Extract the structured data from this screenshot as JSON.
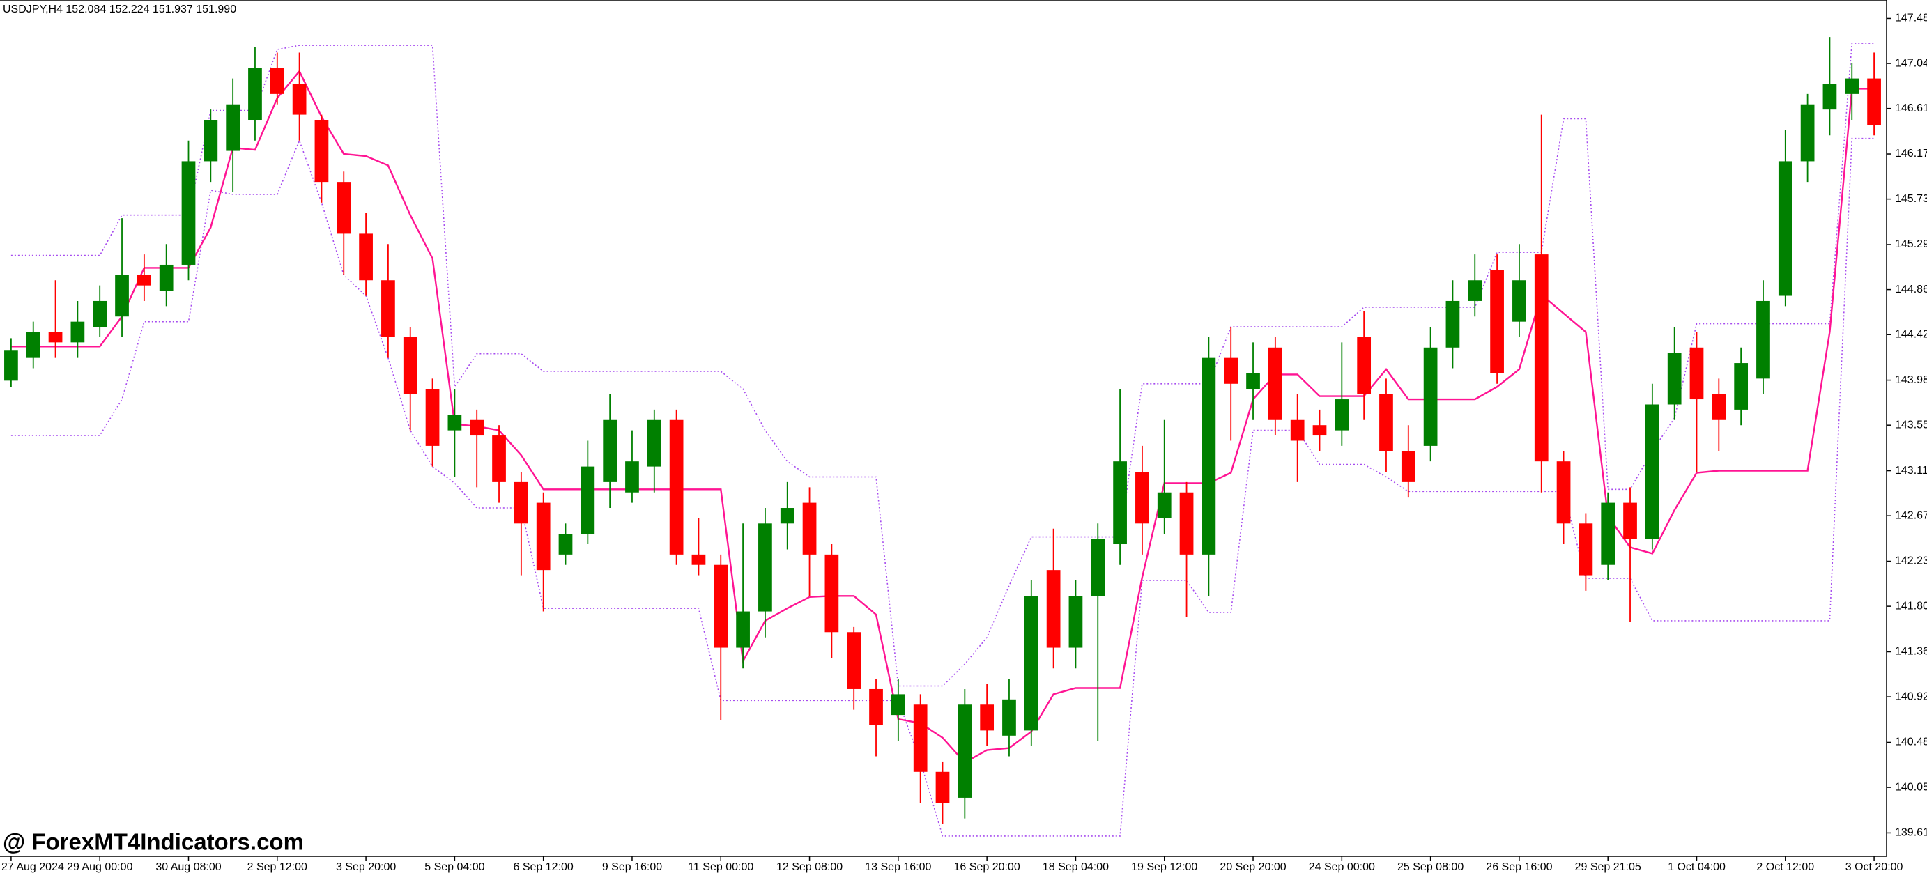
{
  "chart_data": {
    "type": "candlestick",
    "title": "USDJPY,H4  152.084 152.224 151.937 151.990",
    "watermark": "@ ForexMT4Indicators.com",
    "categories": [
      "27 Aug 2024",
      null,
      null,
      null,
      "29 Aug 00:00",
      null,
      null,
      null,
      "30 Aug 08:00",
      null,
      null,
      null,
      "2 Sep 12:00",
      null,
      null,
      null,
      "3 Sep 20:00",
      null,
      null,
      null,
      "5 Sep 04:00",
      null,
      null,
      null,
      "6 Sep 12:00",
      null,
      null,
      null,
      "9 Sep 16:00",
      null,
      null,
      null,
      "11 Sep 00:00",
      null,
      null,
      null,
      "12 Sep 08:00",
      null,
      null,
      null,
      "13 Sep 16:00",
      null,
      null,
      null,
      "16 Sep 20:00",
      null,
      null,
      null,
      "18 Sep 04:00",
      null,
      null,
      null,
      "19 Sep 12:00",
      null,
      null,
      null,
      "20 Sep 20:00",
      null,
      null,
      null,
      "24 Sep 00:00",
      null,
      null,
      null,
      "25 Sep 08:00",
      null,
      null,
      null,
      "26 Sep 16:00",
      null,
      null,
      null,
      "29 Sep 21:05",
      null,
      null,
      null,
      "1 Oct 04:00",
      null,
      null,
      null,
      "2 Oct 12:00",
      null,
      null,
      null,
      "3 Oct 20:00"
    ],
    "open": [
      143.98,
      144.2,
      144.45,
      144.35,
      144.5,
      144.6,
      145.0,
      144.85,
      145.1,
      146.1,
      146.2,
      146.5,
      147.0,
      146.85,
      146.5,
      145.9,
      145.4,
      144.95,
      144.4,
      143.9,
      143.5,
      143.6,
      143.45,
      143.0,
      142.8,
      142.3,
      142.5,
      143.0,
      142.9,
      143.15,
      143.6,
      142.3,
      142.2,
      141.4,
      141.75,
      142.6,
      142.8,
      142.3,
      141.55,
      141.0,
      140.75,
      140.85,
      140.2,
      139.95,
      140.85,
      140.55,
      140.6,
      142.15,
      141.4,
      141.9,
      142.4,
      143.1,
      142.65,
      142.9,
      142.3,
      144.2,
      143.9,
      144.3,
      143.6,
      143.55,
      143.5,
      144.4,
      143.85,
      143.3,
      143.35,
      144.3,
      144.75,
      145.05,
      144.55,
      145.2,
      143.2,
      142.6,
      142.2,
      142.8,
      142.45,
      143.75,
      144.3,
      143.85,
      143.7,
      144.0,
      144.8,
      146.1,
      146.6,
      146.75,
      146.9
    ],
    "high": [
      144.39,
      144.55,
      144.95,
      144.75,
      144.9,
      145.55,
      145.2,
      145.3,
      146.3,
      146.6,
      146.9,
      147.2,
      147.15,
      147.15,
      146.55,
      146.0,
      145.6,
      145.3,
      144.5,
      144.0,
      143.9,
      143.7,
      143.55,
      143.1,
      142.9,
      142.6,
      143.4,
      143.85,
      143.5,
      143.7,
      143.7,
      142.65,
      142.3,
      142.6,
      142.75,
      143.0,
      142.95,
      142.4,
      141.6,
      141.1,
      141.1,
      140.95,
      140.3,
      141.0,
      141.05,
      141.1,
      142.05,
      142.55,
      142.05,
      142.6,
      143.9,
      143.35,
      143.6,
      143.0,
      144.4,
      144.5,
      144.35,
      144.4,
      143.85,
      143.7,
      144.35,
      144.65,
      144.0,
      143.55,
      144.5,
      144.95,
      145.2,
      145.2,
      145.3,
      146.55,
      143.3,
      142.7,
      142.9,
      142.95,
      143.95,
      144.5,
      144.45,
      144.0,
      144.3,
      144.95,
      146.4,
      146.75,
      147.3,
      147.05,
      147.15
    ],
    "low": [
      143.92,
      144.1,
      144.2,
      144.2,
      144.4,
      144.4,
      144.75,
      144.7,
      144.95,
      145.9,
      145.8,
      146.3,
      146.65,
      146.3,
      145.7,
      145.0,
      144.8,
      144.2,
      143.5,
      143.15,
      143.05,
      142.95,
      142.8,
      142.1,
      141.75,
      142.2,
      142.4,
      142.75,
      142.8,
      142.9,
      142.2,
      142.1,
      140.7,
      141.2,
      141.5,
      142.35,
      141.9,
      141.3,
      140.8,
      140.35,
      140.5,
      139.9,
      139.7,
      139.75,
      140.45,
      140.35,
      140.45,
      141.2,
      141.2,
      140.5,
      142.2,
      142.3,
      142.5,
      141.7,
      141.9,
      143.4,
      143.6,
      143.45,
      143.0,
      143.3,
      143.35,
      143.6,
      143.1,
      142.85,
      143.2,
      144.1,
      144.6,
      143.95,
      144.4,
      142.9,
      142.4,
      141.95,
      142.05,
      141.65,
      142.35,
      143.6,
      143.1,
      143.3,
      143.55,
      143.85,
      144.7,
      145.9,
      146.35,
      146.5,
      146.35
    ],
    "close": [
      144.27,
      144.45,
      144.35,
      144.55,
      144.75,
      145.0,
      144.9,
      145.1,
      146.1,
      146.5,
      146.65,
      147.0,
      146.75,
      146.55,
      145.9,
      145.4,
      144.95,
      144.4,
      143.85,
      143.35,
      143.65,
      143.45,
      143.0,
      142.6,
      142.15,
      142.5,
      143.15,
      143.6,
      143.2,
      143.6,
      142.3,
      142.2,
      141.4,
      141.75,
      142.6,
      142.75,
      142.3,
      141.55,
      141.0,
      140.65,
      140.95,
      140.2,
      139.9,
      140.85,
      140.6,
      140.9,
      141.9,
      141.4,
      141.9,
      142.45,
      143.2,
      142.6,
      142.9,
      142.3,
      144.2,
      143.95,
      144.05,
      143.6,
      143.4,
      143.45,
      143.8,
      143.85,
      143.3,
      143.0,
      144.3,
      144.75,
      144.95,
      144.05,
      144.95,
      143.2,
      142.6,
      142.1,
      142.8,
      142.45,
      143.75,
      144.25,
      143.8,
      143.6,
      144.15,
      144.75,
      146.1,
      146.65,
      146.85,
      146.9,
      146.45
    ],
    "up_color": "#008000",
    "down_color": "#ff0000",
    "lines": [
      {
        "color": "#a64bef",
        "style": "dotted",
        "values": [
          145.19,
          145.19,
          145.19,
          145.19,
          145.19,
          145.58,
          145.58,
          145.58,
          145.58,
          146.59,
          146.59,
          146.59,
          147.18,
          147.22,
          147.22,
          147.22,
          147.22,
          147.22,
          147.22,
          147.22,
          143.92,
          144.24,
          144.24,
          144.24,
          144.07,
          144.07,
          144.07,
          144.07,
          144.07,
          144.07,
          144.07,
          144.07,
          144.07,
          143.9,
          143.5,
          143.2,
          143.05,
          143.05,
          143.05,
          143.05,
          141.03,
          141.03,
          141.03,
          141.24,
          141.5,
          142.0,
          142.47,
          142.47,
          142.47,
          142.47,
          142.47,
          143.95,
          143.95,
          143.95,
          143.95,
          144.5,
          144.5,
          144.5,
          144.5,
          144.5,
          144.5,
          144.69,
          144.69,
          144.69,
          144.69,
          144.69,
          144.69,
          145.22,
          145.22,
          145.22,
          146.51,
          146.51,
          142.93,
          142.93,
          143.3,
          143.62,
          144.53,
          144.53,
          144.53,
          144.53,
          144.53,
          144.53,
          144.53,
          147.24,
          147.24
        ]
      },
      {
        "color": "#a64bef",
        "style": "dotted",
        "values": [
          143.45,
          143.45,
          143.45,
          143.45,
          143.45,
          143.8,
          144.55,
          144.55,
          144.55,
          145.82,
          145.78,
          145.78,
          145.78,
          146.3,
          145.7,
          145.0,
          144.8,
          144.2,
          143.5,
          143.15,
          142.99,
          142.75,
          142.75,
          142.75,
          141.78,
          141.78,
          141.78,
          141.78,
          141.78,
          141.78,
          141.78,
          141.78,
          140.89,
          140.89,
          140.89,
          140.89,
          140.89,
          140.89,
          140.89,
          140.89,
          140.89,
          140.3,
          139.58,
          139.58,
          139.58,
          139.58,
          139.58,
          139.58,
          139.58,
          139.58,
          139.58,
          142.05,
          142.05,
          142.05,
          141.74,
          141.74,
          143.5,
          143.5,
          143.5,
          143.17,
          143.17,
          143.17,
          143.05,
          142.91,
          142.91,
          142.91,
          142.91,
          142.91,
          142.91,
          142.91,
          142.91,
          142.07,
          142.07,
          142.07,
          141.66,
          141.66,
          141.66,
          141.66,
          141.66,
          141.66,
          141.66,
          141.66,
          141.66,
          146.32,
          146.32
        ]
      },
      {
        "color": "#ff1493",
        "style": "solid",
        "values": [
          144.31,
          144.31,
          144.31,
          144.31,
          144.31,
          144.6,
          145.07,
          145.07,
          145.07,
          145.46,
          146.23,
          146.21,
          146.71,
          146.97,
          146.53,
          146.17,
          146.15,
          146.06,
          145.58,
          145.16,
          143.56,
          143.54,
          143.5,
          143.26,
          142.93,
          142.93,
          142.93,
          142.93,
          142.93,
          142.93,
          142.93,
          142.93,
          142.93,
          141.27,
          141.66,
          141.78,
          141.89,
          141.9,
          141.9,
          141.72,
          140.71,
          140.67,
          140.53,
          140.29,
          140.41,
          140.43,
          140.59,
          140.95,
          141.01,
          141.01,
          141.01,
          142.08,
          142.99,
          142.99,
          142.99,
          143.09,
          143.8,
          144.04,
          144.04,
          143.83,
          143.83,
          143.83,
          144.09,
          143.8,
          143.8,
          143.8,
          143.8,
          143.92,
          144.09,
          144.81,
          144.63,
          144.45,
          142.67,
          142.37,
          142.31,
          142.73,
          143.09,
          143.11,
          143.11,
          143.11,
          143.11,
          143.11,
          144.45,
          146.8,
          146.8
        ]
      }
    ],
    "ylim": [
      139.384,
      147.658
    ],
    "yticks": [
      {
        "value": 147.48,
        "label": "147.480"
      },
      147.045,
      {
        "value": 146.61,
        "label": "146.610"
      },
      {
        "value": 146.17,
        "label": "146.170"
      },
      145.735,
      145.295,
      {
        "value": 144.86,
        "label": "144.860"
      },
      144.425,
      143.985,
      {
        "value": 143.55,
        "label": "143.550"
      },
      {
        "value": 143.11,
        "label": "143.110"
      },
      142.675,
      142.235,
      {
        "value": 141.8,
        "label": "141.800"
      },
      {
        "value": 141.36,
        "label": "141.360"
      },
      140.925,
      140.485,
      {
        "value": 140.05,
        "label": "140.050"
      },
      {
        "value": 139.61,
        "label": "139.610"
      }
    ],
    "grid": false
  }
}
